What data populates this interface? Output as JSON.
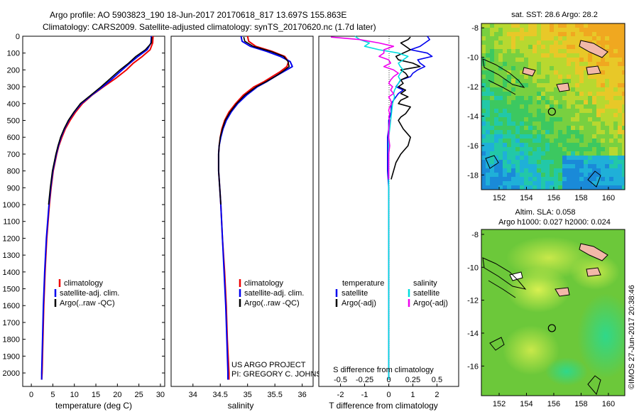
{
  "header": {
    "line1": "Argo profile: AO 5903823_190 18-Jun-2017 20170618_817 13.697S 155.863E",
    "line2": "Climatology: CARS2009. Satellite-adjusted climatology: synTS_20170620.nc (1.7d later)"
  },
  "colors": {
    "climatology": "#ee0000",
    "satellite": "#0000ee",
    "argo": "#000000",
    "sat_salinity": "#00dddd",
    "argo_salinity": "#ee00ee"
  },
  "depth_axis": {
    "ticks": [
      "0",
      "100",
      "200",
      "300",
      "400",
      "500",
      "600",
      "700",
      "800",
      "900",
      "1000",
      "1100",
      "1200",
      "1300",
      "1400",
      "1500",
      "1600",
      "1700",
      "1800",
      "1900",
      "2000"
    ],
    "min": 0,
    "max": 2080
  },
  "chart_data": [
    {
      "type": "line",
      "name": "temperature-panel",
      "xlabel": "temperature (deg C)",
      "xlim": [
        -2,
        31
      ],
      "xticks": [
        "0",
        "5",
        "10",
        "15",
        "20",
        "25",
        "30"
      ],
      "legend": [
        "climatology",
        "satellite-adj. clim.",
        "Argo(..raw -QC)"
      ],
      "series": [
        {
          "name": "climatology",
          "depth": [
            0,
            40,
            80,
            120,
            160,
            200,
            250,
            300,
            350,
            400,
            450,
            500,
            550,
            600,
            650,
            700,
            800,
            900,
            1000,
            1200,
            1400,
            1600,
            1800,
            2000,
            2040
          ],
          "values": [
            28.3,
            28.2,
            27.6,
            25.8,
            23.7,
            22.1,
            19.6,
            16.8,
            14.1,
            11.9,
            10.3,
            9.0,
            7.9,
            7.1,
            6.4,
            5.9,
            5.1,
            4.6,
            4.2,
            3.6,
            3.2,
            2.9,
            2.7,
            2.5,
            2.4
          ]
        },
        {
          "name": "satellite",
          "depth": [
            0,
            40,
            80,
            120,
            160,
            200,
            250,
            300,
            350,
            400,
            450,
            500,
            550,
            600,
            650,
            700,
            800,
            900,
            1000,
            1200,
            1400,
            1600,
            1800,
            2000,
            2040
          ],
          "values": [
            27.9,
            27.8,
            26.9,
            24.8,
            22.9,
            21.1,
            18.9,
            16.6,
            14.0,
            11.6,
            10.0,
            8.7,
            7.7,
            6.9,
            6.3,
            5.8,
            5.0,
            4.5,
            4.1,
            3.5,
            3.1,
            2.8,
            2.6,
            2.4,
            2.4
          ]
        },
        {
          "name": "argo",
          "depth": [
            5,
            40,
            80,
            120,
            160,
            200,
            250,
            300,
            350,
            400,
            450,
            500,
            550,
            600,
            650,
            700,
            800,
            900,
            1000
          ],
          "values": [
            28.0,
            27.9,
            26.5,
            24.3,
            22.6,
            20.6,
            18.4,
            16.2,
            13.8,
            11.4,
            9.9,
            8.6,
            7.6,
            6.8,
            6.2,
            5.7,
            4.9,
            4.4,
            4.0
          ]
        }
      ]
    },
    {
      "type": "line",
      "name": "salinity-panel",
      "xlabel": "salinity",
      "xlim": [
        33.6,
        36.2
      ],
      "xticks": [
        "34",
        "34.5",
        "35",
        "35.5",
        "36"
      ],
      "legend": [
        "climatology",
        "satellite-adj. clim.",
        "Argo(..raw -QC)"
      ],
      "credit1": "US ARGO PROJECT",
      "credit2": "PI: GREGORY C. JOHNSON",
      "series": [
        {
          "name": "climatology",
          "depth": [
            0,
            30,
            60,
            90,
            120,
            150,
            180,
            210,
            240,
            270,
            300,
            350,
            400,
            450,
            500,
            550,
            600,
            650,
            700,
            800,
            900,
            1000,
            1200,
            1400,
            1600,
            1800,
            2000,
            2040
          ],
          "values": [
            35.0,
            35.02,
            35.15,
            35.45,
            35.68,
            35.75,
            35.72,
            35.6,
            35.45,
            35.3,
            35.12,
            34.92,
            34.78,
            34.66,
            34.58,
            34.53,
            34.5,
            34.48,
            34.47,
            34.47,
            34.49,
            34.51,
            34.54,
            34.58,
            34.61,
            34.63,
            34.66,
            34.66
          ]
        },
        {
          "name": "satellite",
          "depth": [
            0,
            30,
            60,
            90,
            120,
            150,
            180,
            210,
            240,
            270,
            300,
            350,
            400,
            450,
            500,
            550,
            600,
            650,
            700,
            800,
            900,
            1000,
            1200,
            1400,
            1600,
            1800,
            2000,
            2040
          ],
          "values": [
            34.88,
            34.9,
            35.05,
            35.35,
            35.6,
            35.78,
            35.82,
            35.66,
            35.5,
            35.35,
            35.18,
            34.98,
            34.82,
            34.7,
            34.61,
            34.55,
            34.51,
            34.48,
            34.47,
            34.47,
            34.49,
            34.51,
            34.54,
            34.57,
            34.6,
            34.62,
            34.64,
            34.64
          ]
        },
        {
          "name": "argo",
          "depth": [
            5,
            30,
            60,
            90,
            120,
            150,
            180,
            210,
            240,
            270,
            300,
            350,
            400,
            450,
            500,
            550,
            600,
            650,
            700,
            800,
            900,
            1000
          ],
          "values": [
            34.93,
            34.95,
            35.1,
            35.42,
            35.66,
            35.74,
            35.76,
            35.64,
            35.5,
            35.34,
            35.16,
            34.95,
            34.8,
            34.68,
            34.59,
            34.54,
            34.5,
            34.48,
            34.47,
            34.47,
            34.49,
            34.51
          ]
        }
      ]
    },
    {
      "type": "line",
      "name": "difference-panel",
      "xlabel": "T difference from climatology",
      "xlabel_top": "S difference from climatology",
      "t_lim": [
        -2.9,
        2.9
      ],
      "t_ticks": [
        "-2",
        "-1",
        "0",
        "1",
        "2"
      ],
      "s_ticks": [
        "-0.5",
        "-0.25",
        "0",
        "0.25",
        "0.5"
      ],
      "legend_t_head": "temperature",
      "legend_s_head": "salinity",
      "legend_t": [
        "satellite",
        "Argo(-adj)"
      ],
      "legend_s": [
        "satellite",
        "Argo(-adj)"
      ],
      "series": [
        {
          "name": "temp-satellite",
          "depth": [
            0,
            20,
            40,
            60,
            80,
            100,
            120,
            140,
            160,
            180,
            200,
            220,
            240,
            260,
            280,
            300,
            320,
            340,
            360,
            380,
            400,
            450,
            500,
            550,
            600,
            700,
            800,
            900,
            1000,
            1200,
            1400,
            1600,
            1800,
            2000,
            2040
          ],
          "values": [
            1.6,
            1.7,
            1.5,
            1.3,
            0.9,
            1.6,
            1.8,
            1.2,
            1.3,
            1.5,
            1.2,
            1.0,
            0.9,
            0.5,
            0.4,
            0.3,
            0.6,
            0.4,
            0.3,
            0.2,
            0.1,
            0.1,
            0.0,
            0.0,
            -0.05,
            -0.05,
            -0.05,
            0.0,
            0.0,
            0.0,
            0.0,
            0.0,
            0.0,
            0.0,
            0.0
          ]
        },
        {
          "name": "temp-argo",
          "depth": [
            5,
            20,
            40,
            60,
            80,
            100,
            120,
            140,
            160,
            180,
            200,
            220,
            240,
            260,
            280,
            300,
            320,
            340,
            360,
            380,
            400,
            420,
            440,
            460,
            480,
            500,
            550,
            600,
            650,
            700,
            750,
            800,
            850
          ],
          "values": [
            0.9,
            0.8,
            0.5,
            0.7,
            0.9,
            0.6,
            0.3,
            0.4,
            1.0,
            1.3,
            0.5,
            0.7,
            0.8,
            0.5,
            0.6,
            0.4,
            0.7,
            0.5,
            0.8,
            0.5,
            0.4,
            0.9,
            0.8,
            0.7,
            0.5,
            0.4,
            0.6,
            0.9,
            0.8,
            0.5,
            0.3,
            0.2,
            0.1
          ]
        },
        {
          "name": "sal-satellite",
          "depth": [
            0,
            20,
            40,
            60,
            80,
            100,
            120,
            140,
            160,
            180,
            200,
            220,
            240,
            260,
            280,
            300,
            320,
            340,
            360,
            380,
            400,
            450,
            500,
            550,
            600,
            700,
            800,
            900,
            1000,
            1200,
            1400,
            1600,
            1800,
            2000,
            2040
          ],
          "values": [
            -0.35,
            -0.3,
            -0.2,
            -0.25,
            -0.1,
            0.1,
            0.2,
            0.15,
            0.1,
            0.12,
            0.15,
            0.12,
            0.1,
            0.12,
            0.1,
            0.08,
            0.06,
            0.05,
            0.06,
            0.05,
            0.04,
            0.03,
            0.02,
            0.01,
            0.0,
            0.0,
            0.0,
            0.0,
            0.0,
            0.0,
            0.0,
            0.0,
            0.0,
            0.0,
            0.0
          ]
        },
        {
          "name": "sal-argo",
          "depth": [
            5,
            20,
            40,
            60,
            80,
            100,
            120,
            140,
            160,
            180,
            200,
            220,
            240,
            260,
            280,
            300,
            320,
            340,
            360,
            380,
            400,
            420,
            440,
            460,
            480,
            500,
            550,
            600,
            650,
            700,
            750,
            800,
            850
          ],
          "values": [
            -0.6,
            -0.3,
            -0.1,
            0.05,
            -0.05,
            -0.05,
            -0.1,
            0.0,
            0.02,
            -0.05,
            0.05,
            0.1,
            0.05,
            0.02,
            0.0,
            0.04,
            0.02,
            0.05,
            0.0,
            0.02,
            0.03,
            0.01,
            0.0,
            0.01,
            0.0,
            0.01,
            0.0,
            0.0,
            0.01,
            0.0,
            0.0,
            0.0,
            0.0
          ]
        }
      ]
    },
    {
      "type": "heatmap",
      "name": "sst-map",
      "title": "sat. SST: 28.6 Argo: 28.2",
      "xlim": [
        150.7,
        161.2
      ],
      "ylim": [
        -19.0,
        -7.7
      ],
      "xticks": [
        "152",
        "154",
        "156",
        "158",
        "160"
      ],
      "yticks": [
        "-8",
        "-10",
        "-12",
        "-14",
        "-16",
        "-18"
      ],
      "profile_lon": 155.863,
      "profile_lat": -13.697
    },
    {
      "type": "heatmap",
      "name": "sla-map",
      "title1": "Altim. SLA: 0.058",
      "title2": "Argo h1000: 0.027 h2000: 0.024",
      "xlim": [
        150.7,
        161.2
      ],
      "ylim": [
        -17.8,
        -7.7
      ],
      "xticks": [
        "152",
        "154",
        "156",
        "158",
        "160"
      ],
      "yticks": [
        "-8",
        "-10",
        "-12",
        "-14",
        "-16"
      ],
      "profile_lon": 155.863,
      "profile_lat": -13.697
    }
  ],
  "side_credit": "©IMOS 27-Jun-2017 20:38:46"
}
